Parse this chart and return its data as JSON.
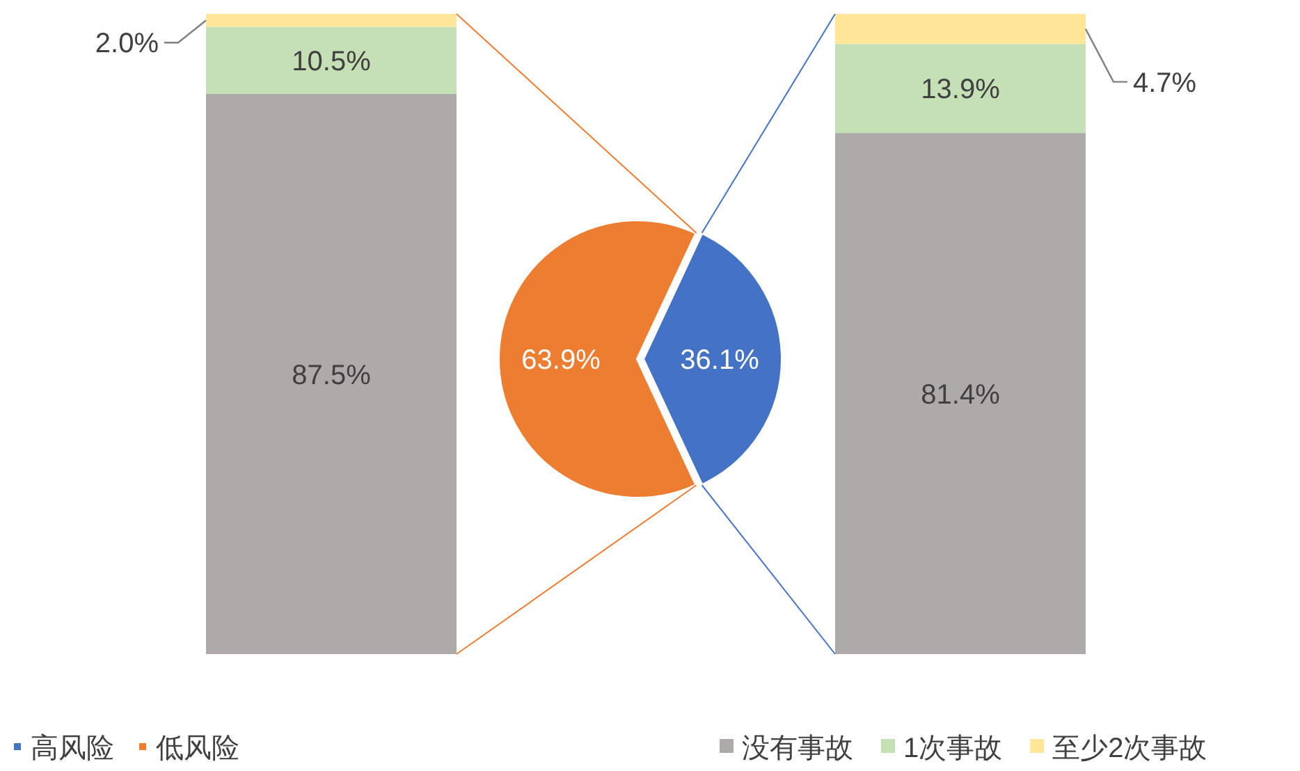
{
  "chart_data": [
    {
      "type": "bar",
      "stacked": true,
      "categories": [
        null
      ],
      "legend": false,
      "series": [
        {
          "color": "#aeaaaa",
          "values": [
            87.5
          ],
          "value_labels": [
            "87.5%"
          ]
        },
        {
          "color": "#c5e0b4",
          "values": [
            10.5
          ],
          "value_labels": [
            "10.5%"
          ]
        },
        {
          "color": "#ffe699",
          "values": [
            2.0
          ],
          "value_labels": [
            "2.0%"
          ]
        }
      ]
    },
    {
      "type": "pie",
      "categories": [
        "高风险",
        "低风险"
      ],
      "values": [
        36.1,
        63.9
      ],
      "colors": [
        "#4472c4",
        "#ed7d31"
      ],
      "value_labels": [
        "36.1%",
        "63.9%"
      ],
      "legend": "bottom left"
    },
    {
      "type": "bar",
      "stacked": true,
      "categories": [
        null
      ],
      "legend": "bottom right",
      "series": [
        {
          "name": "没有事故",
          "color": "#aeaaaa",
          "values": [
            81.4
          ],
          "value_labels": [
            "81.4%"
          ]
        },
        {
          "name": "1次事故",
          "color": "#c5e0b4",
          "values": [
            13.9
          ],
          "value_labels": [
            "13.9%"
          ]
        },
        {
          "name": "至少2次事故",
          "color": "#ffe699",
          "values": [
            4.7
          ],
          "value_labels": [
            "4.7%"
          ]
        }
      ]
    }
  ]
}
